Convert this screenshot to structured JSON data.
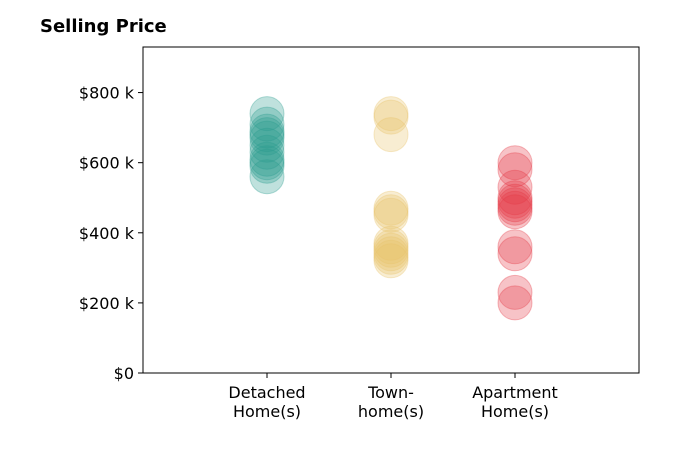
{
  "chart_data": {
    "type": "scatter",
    "title": "Selling Price",
    "xlabel": "",
    "ylabel": "",
    "categories": [
      "Detached\nHome(s)",
      "Town-\nhome(s)",
      "Apartment\nHome(s)"
    ],
    "ylim": [
      0,
      930000
    ],
    "y_ticks": [
      0,
      200000,
      400000,
      600000,
      800000
    ],
    "y_tick_labels": [
      "$0",
      "$200 k",
      "$400 k",
      "$600 k",
      "$800 k"
    ],
    "grid": false,
    "legend": "none",
    "series": [
      {
        "color": "#2a9d8f",
        "values": [
          740000,
          710000,
          690000,
          680000,
          670000,
          650000,
          630000,
          610000,
          600000,
          590000,
          560000
        ]
      },
      {
        "color": "#e9c46a",
        "values": [
          740000,
          730000,
          680000,
          470000,
          460000,
          450000,
          370000,
          360000,
          350000,
          340000,
          330000,
          320000
        ]
      },
      {
        "color": "#e63946",
        "values": [
          600000,
          580000,
          530000,
          500000,
          490000,
          480000,
          470000,
          460000,
          360000,
          340000,
          230000,
          200000
        ]
      }
    ]
  }
}
